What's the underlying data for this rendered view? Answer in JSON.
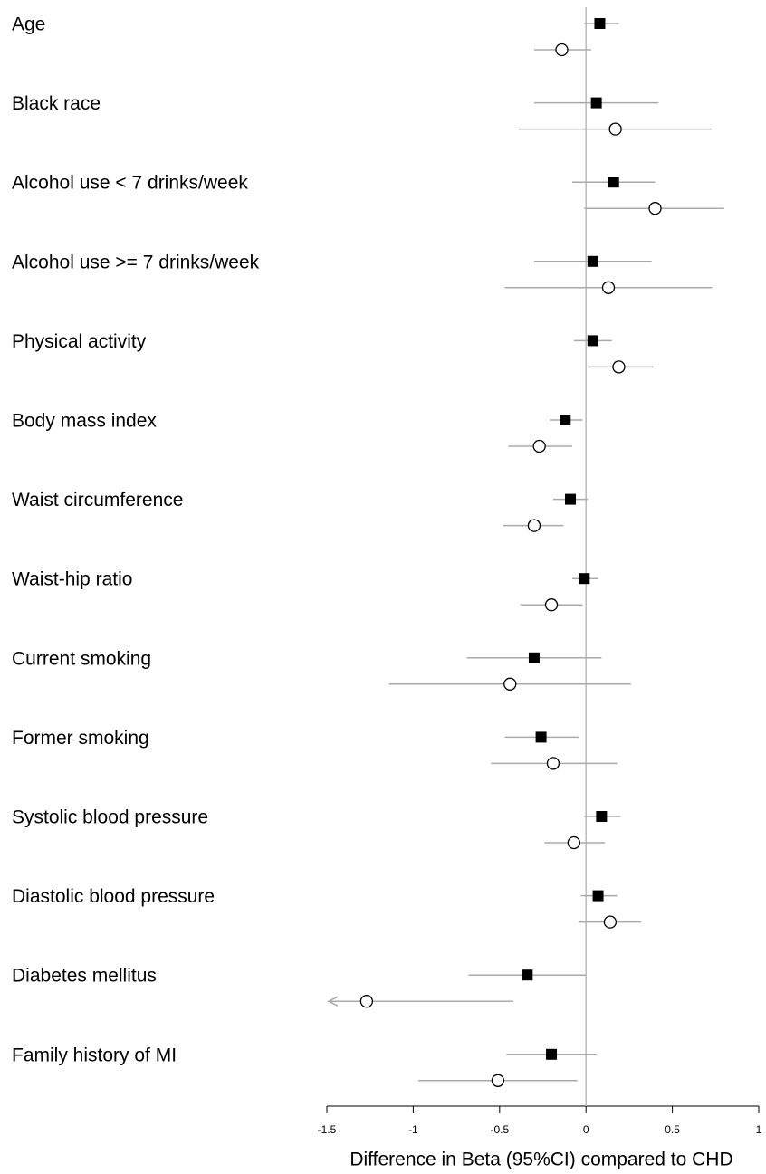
{
  "chart_data": {
    "type": "forest",
    "xlabel": "Difference in Beta (95%CI) compared to CHD",
    "categories": [
      "Age",
      "Black race",
      "Alcohol use < 7 drinks/week",
      "Alcohol use >= 7 drinks/week",
      "Physical activity",
      "Body mass index",
      "Waist circumference",
      "Waist-hip ratio",
      "Current smoking",
      "Former smoking",
      "Systolic blood pressure",
      "Diastolic blood pressure",
      "Diabetes mellitus",
      "Family history of MI"
    ],
    "series": [
      {
        "marker": "square",
        "color": "#000000",
        "values": [
          0.08,
          0.06,
          0.16,
          0.04,
          0.04,
          -0.12,
          -0.09,
          -0.01,
          -0.3,
          -0.26,
          0.09,
          0.07,
          -0.34,
          -0.2
        ],
        "lower": [
          -0.01,
          -0.3,
          -0.08,
          -0.3,
          -0.07,
          -0.21,
          -0.19,
          -0.08,
          -0.69,
          -0.47,
          -0.01,
          -0.03,
          -0.68,
          -0.46
        ],
        "upper": [
          0.19,
          0.42,
          0.4,
          0.38,
          0.15,
          -0.02,
          0.01,
          0.07,
          0.09,
          -0.04,
          0.2,
          0.18,
          0.0,
          0.06
        ]
      },
      {
        "marker": "circle",
        "color": "#ffffff",
        "values": [
          -0.14,
          0.17,
          0.4,
          0.13,
          0.19,
          -0.27,
          -0.3,
          -0.2,
          -0.44,
          -0.19,
          -0.07,
          0.14,
          -1.27,
          -0.51
        ],
        "lower": [
          -0.3,
          -0.39,
          -0.01,
          -0.47,
          0.01,
          -0.45,
          -0.48,
          -0.38,
          -1.14,
          -0.55,
          -0.24,
          -0.04,
          null,
          -0.97
        ],
        "upper": [
          0.03,
          0.73,
          0.8,
          0.73,
          0.39,
          -0.08,
          -0.13,
          -0.02,
          0.26,
          0.18,
          0.11,
          0.32,
          -0.42,
          -0.05
        ]
      }
    ],
    "xlim": [
      -1.5,
      1
    ],
    "xticks": [
      -1.5,
      -1,
      -0.5,
      0,
      0.5,
      1
    ]
  }
}
